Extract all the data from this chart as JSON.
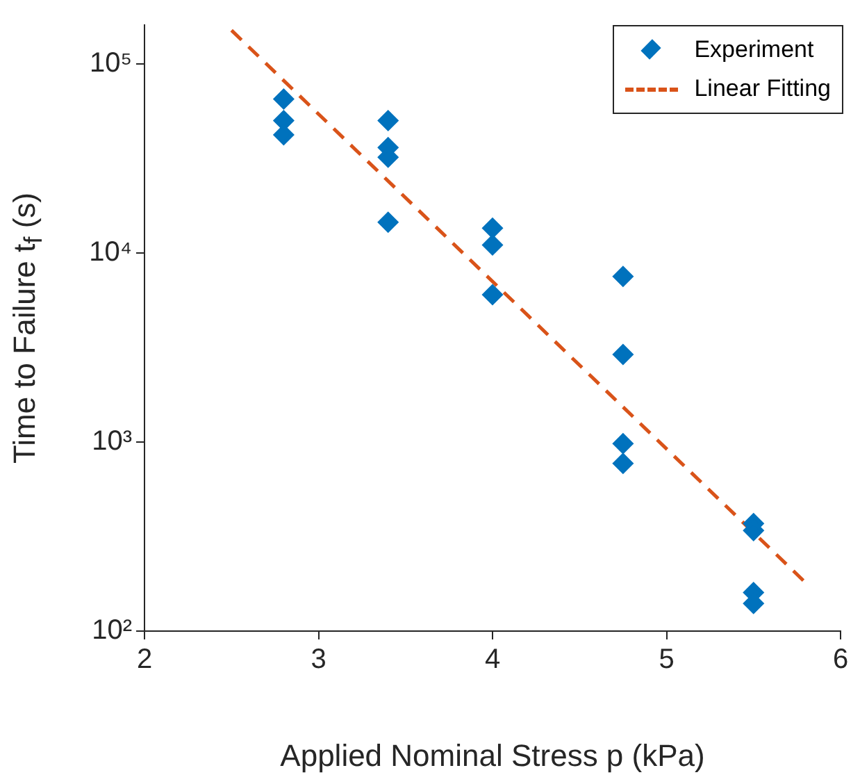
{
  "chart_data": {
    "type": "scatter",
    "xlabel": "Applied Nominal Stress p (kPa)",
    "ylabel": "Time to Failure t$_{f}$ (s)",
    "xlim": [
      2,
      6
    ],
    "xticks": [
      2,
      3,
      4,
      5,
      6
    ],
    "ylim": [
      100,
      160000
    ],
    "log": "y",
    "yticks": [
      {
        "value": 100,
        "label": "10²"
      },
      {
        "value": 1000,
        "label": "10³"
      },
      {
        "value": 10000,
        "label": "10⁴"
      },
      {
        "value": 100000,
        "label": "10⁵"
      }
    ],
    "grid": false,
    "legend": "top right",
    "series": [
      {
        "name": "Experiment",
        "type": "scatter",
        "color": "#0072bd",
        "marker": "diamond",
        "x": [
          2.8,
          2.8,
          2.8,
          3.4,
          3.4,
          3.4,
          3.4,
          4,
          4,
          4,
          4.75,
          4.75,
          4.75,
          4.75,
          5.5,
          5.5,
          5.5,
          5.5
        ],
        "values": [
          65000,
          50000,
          42000,
          50000,
          36000,
          32000,
          14500,
          13500,
          11000,
          6000,
          7500,
          2900,
          980,
          770,
          370,
          340,
          160,
          140
        ]
      },
      {
        "name": "Linear Fitting",
        "type": "line",
        "color": "#d95319",
        "marker": "none",
        "line_style": "dashed",
        "x": [
          2.5,
          5.8
        ],
        "values": [
          150000,
          180
        ]
      }
    ]
  }
}
